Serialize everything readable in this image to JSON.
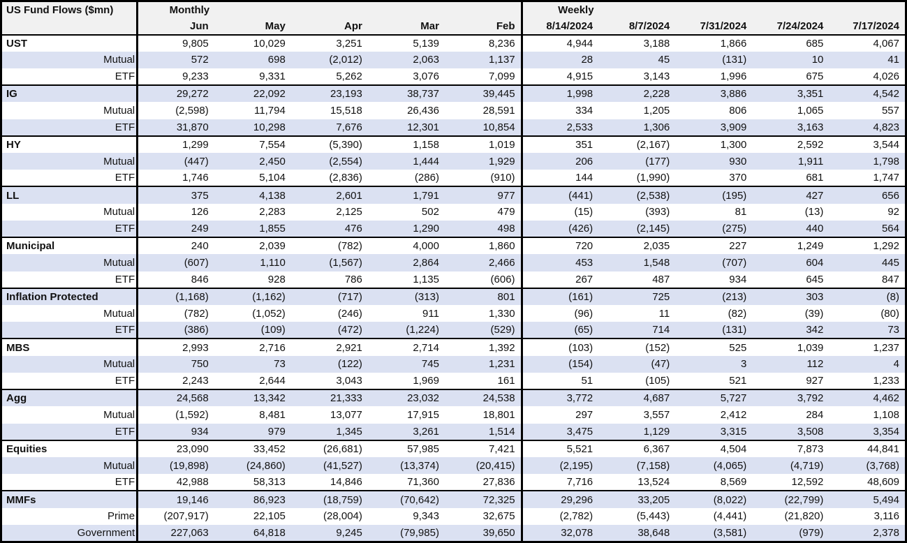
{
  "colors": {
    "row_shade": "#dbe1f2",
    "header_bg": "#f1f1f1",
    "border": "#000000",
    "text": "#111111"
  },
  "table": {
    "title": "US Fund Flows ($mn)",
    "sections": [
      {
        "label": "Monthly",
        "columns": [
          "Jun",
          "May",
          "Apr",
          "Mar",
          "Feb"
        ]
      },
      {
        "label": "Weekly",
        "columns": [
          "8/14/2024",
          "8/7/2024",
          "7/31/2024",
          "7/24/2024",
          "7/17/2024"
        ]
      }
    ],
    "groups": [
      {
        "rows": [
          {
            "label": "UST",
            "monthly": [
              "9,805",
              "10,029",
              "3,251",
              "5,139",
              "8,236"
            ],
            "weekly": [
              "4,944",
              "3,188",
              "1,866",
              "685",
              "4,067"
            ]
          },
          {
            "label": "Mutual",
            "monthly": [
              "572",
              "698",
              "(2,012)",
              "2,063",
              "1,137"
            ],
            "weekly": [
              "28",
              "45",
              "(131)",
              "10",
              "41"
            ]
          },
          {
            "label": "ETF",
            "monthly": [
              "9,233",
              "9,331",
              "5,262",
              "3,076",
              "7,099"
            ],
            "weekly": [
              "4,915",
              "3,143",
              "1,996",
              "675",
              "4,026"
            ]
          }
        ]
      },
      {
        "rows": [
          {
            "label": "IG",
            "monthly": [
              "29,272",
              "22,092",
              "23,193",
              "38,737",
              "39,445"
            ],
            "weekly": [
              "1,998",
              "2,228",
              "3,886",
              "3,351",
              "4,542"
            ]
          },
          {
            "label": "Mutual",
            "monthly": [
              "(2,598)",
              "11,794",
              "15,518",
              "26,436",
              "28,591"
            ],
            "weekly": [
              "334",
              "1,205",
              "806",
              "1,065",
              "557"
            ]
          },
          {
            "label": "ETF",
            "monthly": [
              "31,870",
              "10,298",
              "7,676",
              "12,301",
              "10,854"
            ],
            "weekly": [
              "2,533",
              "1,306",
              "3,909",
              "3,163",
              "4,823"
            ]
          }
        ]
      },
      {
        "rows": [
          {
            "label": "HY",
            "monthly": [
              "1,299",
              "7,554",
              "(5,390)",
              "1,158",
              "1,019"
            ],
            "weekly": [
              "351",
              "(2,167)",
              "1,300",
              "2,592",
              "3,544"
            ]
          },
          {
            "label": "Mutual",
            "monthly": [
              "(447)",
              "2,450",
              "(2,554)",
              "1,444",
              "1,929"
            ],
            "weekly": [
              "206",
              "(177)",
              "930",
              "1,911",
              "1,798"
            ]
          },
          {
            "label": "ETF",
            "monthly": [
              "1,746",
              "5,104",
              "(2,836)",
              "(286)",
              "(910)"
            ],
            "weekly": [
              "144",
              "(1,990)",
              "370",
              "681",
              "1,747"
            ]
          }
        ]
      },
      {
        "rows": [
          {
            "label": "LL",
            "monthly": [
              "375",
              "4,138",
              "2,601",
              "1,791",
              "977"
            ],
            "weekly": [
              "(441)",
              "(2,538)",
              "(195)",
              "427",
              "656"
            ]
          },
          {
            "label": "Mutual",
            "monthly": [
              "126",
              "2,283",
              "2,125",
              "502",
              "479"
            ],
            "weekly": [
              "(15)",
              "(393)",
              "81",
              "(13)",
              "92"
            ]
          },
          {
            "label": "ETF",
            "monthly": [
              "249",
              "1,855",
              "476",
              "1,290",
              "498"
            ],
            "weekly": [
              "(426)",
              "(2,145)",
              "(275)",
              "440",
              "564"
            ]
          }
        ]
      },
      {
        "rows": [
          {
            "label": "Municipal",
            "monthly": [
              "240",
              "2,039",
              "(782)",
              "4,000",
              "1,860"
            ],
            "weekly": [
              "720",
              "2,035",
              "227",
              "1,249",
              "1,292"
            ]
          },
          {
            "label": "Mutual",
            "monthly": [
              "(607)",
              "1,110",
              "(1,567)",
              "2,864",
              "2,466"
            ],
            "weekly": [
              "453",
              "1,548",
              "(707)",
              "604",
              "445"
            ]
          },
          {
            "label": "ETF",
            "monthly": [
              "846",
              "928",
              "786",
              "1,135",
              "(606)"
            ],
            "weekly": [
              "267",
              "487",
              "934",
              "645",
              "847"
            ]
          }
        ]
      },
      {
        "rows": [
          {
            "label": "Inflation Protected",
            "monthly": [
              "(1,168)",
              "(1,162)",
              "(717)",
              "(313)",
              "801"
            ],
            "weekly": [
              "(161)",
              "725",
              "(213)",
              "303",
              "(8)"
            ]
          },
          {
            "label": "Mutual",
            "monthly": [
              "(782)",
              "(1,052)",
              "(246)",
              "911",
              "1,330"
            ],
            "weekly": [
              "(96)",
              "11",
              "(82)",
              "(39)",
              "(80)"
            ]
          },
          {
            "label": "ETF",
            "monthly": [
              "(386)",
              "(109)",
              "(472)",
              "(1,224)",
              "(529)"
            ],
            "weekly": [
              "(65)",
              "714",
              "(131)",
              "342",
              "73"
            ]
          }
        ]
      },
      {
        "rows": [
          {
            "label": "MBS",
            "monthly": [
              "2,993",
              "2,716",
              "2,921",
              "2,714",
              "1,392"
            ],
            "weekly": [
              "(103)",
              "(152)",
              "525",
              "1,039",
              "1,237"
            ]
          },
          {
            "label": "Mutual",
            "monthly": [
              "750",
              "73",
              "(122)",
              "745",
              "1,231"
            ],
            "weekly": [
              "(154)",
              "(47)",
              "3",
              "112",
              "4"
            ]
          },
          {
            "label": "ETF",
            "monthly": [
              "2,243",
              "2,644",
              "3,043",
              "1,969",
              "161"
            ],
            "weekly": [
              "51",
              "(105)",
              "521",
              "927",
              "1,233"
            ]
          }
        ]
      },
      {
        "rows": [
          {
            "label": "Agg",
            "monthly": [
              "24,568",
              "13,342",
              "21,333",
              "23,032",
              "24,538"
            ],
            "weekly": [
              "3,772",
              "4,687",
              "5,727",
              "3,792",
              "4,462"
            ]
          },
          {
            "label": "Mutual",
            "monthly": [
              "(1,592)",
              "8,481",
              "13,077",
              "17,915",
              "18,801"
            ],
            "weekly": [
              "297",
              "3,557",
              "2,412",
              "284",
              "1,108"
            ]
          },
          {
            "label": "ETF",
            "monthly": [
              "934",
              "979",
              "1,345",
              "3,261",
              "1,514"
            ],
            "weekly": [
              "3,475",
              "1,129",
              "3,315",
              "3,508",
              "3,354"
            ]
          }
        ]
      },
      {
        "rows": [
          {
            "label": "Equities",
            "monthly": [
              "23,090",
              "33,452",
              "(26,681)",
              "57,985",
              "7,421"
            ],
            "weekly": [
              "5,521",
              "6,367",
              "4,504",
              "7,873",
              "44,841"
            ]
          },
          {
            "label": "Mutual",
            "monthly": [
              "(19,898)",
              "(24,860)",
              "(41,527)",
              "(13,374)",
              "(20,415)"
            ],
            "weekly": [
              "(2,195)",
              "(7,158)",
              "(4,065)",
              "(4,719)",
              "(3,768)"
            ]
          },
          {
            "label": "ETF",
            "monthly": [
              "42,988",
              "58,313",
              "14,846",
              "71,360",
              "27,836"
            ],
            "weekly": [
              "7,716",
              "13,524",
              "8,569",
              "12,592",
              "48,609"
            ]
          }
        ]
      },
      {
        "rows": [
          {
            "label": "MMFs",
            "monthly": [
              "19,146",
              "86,923",
              "(18,759)",
              "(70,642)",
              "72,325"
            ],
            "weekly": [
              "29,296",
              "33,205",
              "(8,022)",
              "(22,799)",
              "5,494"
            ]
          },
          {
            "label": "Prime",
            "monthly": [
              "(207,917)",
              "22,105",
              "(28,004)",
              "9,343",
              "32,675"
            ],
            "weekly": [
              "(2,782)",
              "(5,443)",
              "(4,441)",
              "(21,820)",
              "3,116"
            ]
          },
          {
            "label": "Government",
            "monthly": [
              "227,063",
              "64,818",
              "9,245",
              "(79,985)",
              "39,650"
            ],
            "weekly": [
              "32,078",
              "38,648",
              "(3,581)",
              "(979)",
              "2,378"
            ]
          }
        ]
      }
    ]
  }
}
